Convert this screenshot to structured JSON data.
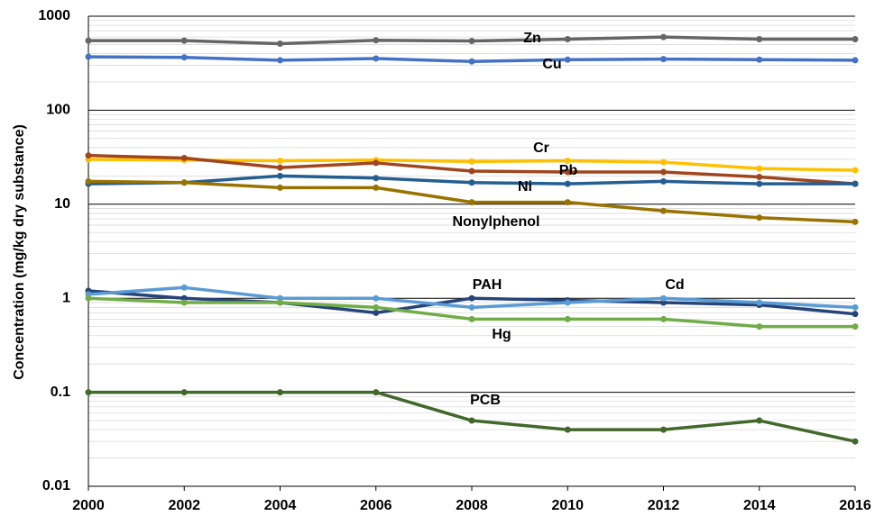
{
  "chart_data": {
    "type": "line",
    "y_label": "Concentration (mg/kg dry substance)",
    "x": [
      2000,
      2002,
      2004,
      2006,
      2008,
      2010,
      2012,
      2014,
      2016
    ],
    "xlim": [
      2000,
      2016
    ],
    "xticks": [
      2000,
      2002,
      2004,
      2006,
      2008,
      2010,
      2012,
      2014,
      2016
    ],
    "ylim": [
      0.01,
      1000
    ],
    "yticks": [
      0.01,
      0.1,
      1,
      10,
      100,
      1000
    ],
    "log_y": true,
    "grid": true,
    "minor_grid": true,
    "series": [
      {
        "name": "Zn",
        "color": "#666666",
        "values": [
          550,
          550,
          510,
          555,
          545,
          570,
          600,
          570,
          570
        ]
      },
      {
        "name": "Cu",
        "color": "#4472c4",
        "values": [
          370,
          365,
          340,
          355,
          330,
          345,
          350,
          345,
          340
        ]
      },
      {
        "name": "Cr",
        "color": "#ffc000",
        "values": [
          30,
          29.5,
          29,
          29.5,
          28.5,
          29,
          28,
          24,
          23
        ]
      },
      {
        "name": "Pb",
        "color": "#a0461e",
        "values": [
          33,
          31,
          24.5,
          27.5,
          22.5,
          22,
          22,
          19.5,
          16.5
        ]
      },
      {
        "name": "Ni",
        "color": "#255e91",
        "values": [
          16.5,
          17,
          20,
          19,
          17,
          16.5,
          17.5,
          16.5,
          16.5
        ]
      },
      {
        "name": "Nonylphenol",
        "color": "#997300",
        "values": [
          17.5,
          17,
          15,
          15,
          10.5,
          10.5,
          8.5,
          7.2,
          6.5
        ]
      },
      {
        "name": "PAH",
        "color": "#264478",
        "values": [
          1.2,
          1.0,
          0.9,
          0.7,
          1.0,
          0.95,
          0.9,
          0.85,
          0.68
        ]
      },
      {
        "name": "Cd",
        "color": "#5b9bd5",
        "values": [
          1.1,
          1.3,
          1.0,
          1.0,
          0.8,
          0.9,
          1.0,
          0.9,
          0.8
        ]
      },
      {
        "name": "Hg",
        "color": "#70ad47",
        "values": [
          1.0,
          0.9,
          0.9,
          0.8,
          0.6,
          0.6,
          0.6,
          0.5,
          0.5
        ]
      },
      {
        "name": "PCB",
        "color": "#43682b",
        "values": [
          0.1,
          0.1,
          0.1,
          0.1,
          0.05,
          0.04,
          0.04,
          0.05,
          0.03
        ]
      }
    ]
  }
}
